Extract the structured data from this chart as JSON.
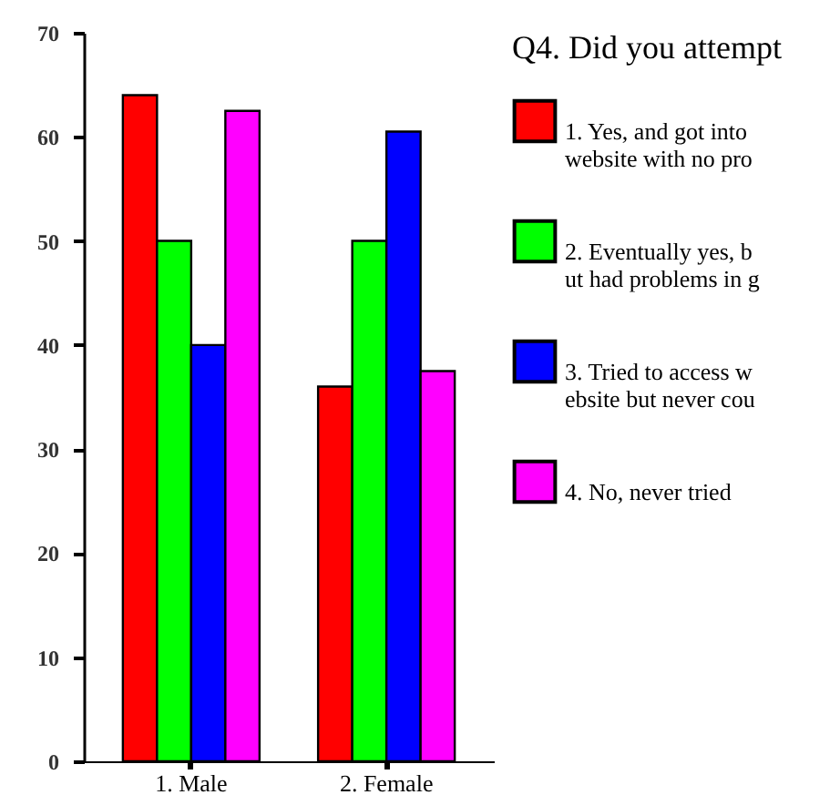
{
  "chart_data": {
    "type": "bar",
    "categories": [
      "1. Male",
      "2. Female"
    ],
    "series": [
      {
        "name": "1. Yes, and got into website with no pro",
        "color": "#ff0000",
        "values": [
          64,
          36
        ]
      },
      {
        "name": "2. Eventually yes, but had problems in g",
        "color": "#00ff00",
        "values": [
          50,
          50
        ]
      },
      {
        "name": "3. Tried to access website but never cou",
        "color": "#0000ff",
        "values": [
          40,
          60.5
        ]
      },
      {
        "name": "4. No, never tried",
        "color": "#ff00ff",
        "values": [
          62.5,
          37.5
        ]
      }
    ],
    "legend_title": "Q4. Did you attempt",
    "legend": "right",
    "grid": false,
    "ylim": [
      0,
      70
    ],
    "yticks": [
      0,
      10,
      20,
      30,
      40,
      50,
      60,
      70
    ]
  }
}
